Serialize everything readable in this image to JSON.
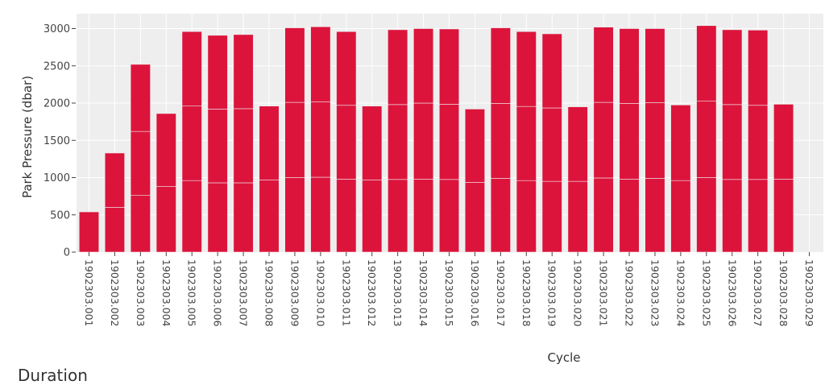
{
  "chart_data": {
    "type": "bar",
    "xlabel": "Cycle",
    "ylabel": "Park Pressure (dbar)",
    "ylim": [
      0,
      3200
    ],
    "yticks": [
      0,
      500,
      1000,
      1500,
      2000,
      2500,
      3000
    ],
    "grid": true,
    "bar_color": "#dc143c",
    "plot_bg": "#eeeeee",
    "categories": [
      "1902303.001",
      "1902303.002",
      "1902303.003",
      "1902303.004",
      "1902303.005",
      "1902303.006",
      "1902303.007",
      "1902303.008",
      "1902303.009",
      "1902303.010",
      "1902303.011",
      "1902303.012",
      "1902303.013",
      "1902303.014",
      "1902303.015",
      "1902303.016",
      "1902303.017",
      "1902303.018",
      "1902303.019",
      "1902303.020",
      "1902303.021",
      "1902303.022",
      "1902303.023",
      "1902303.024",
      "1902303.025",
      "1902303.026",
      "1902303.027",
      "1902303.028",
      "1902303.029"
    ],
    "segments": [
      [
        540
      ],
      [
        600,
        730
      ],
      [
        760,
        860,
        900
      ],
      [
        880,
        980
      ],
      [
        960,
        1000,
        1000
      ],
      [
        930,
        990,
        990
      ],
      [
        930,
        995,
        995
      ],
      [
        970,
        990
      ],
      [
        1000,
        1010,
        1000
      ],
      [
        1005,
        1010,
        1010
      ],
      [
        980,
        990,
        990
      ],
      [
        970,
        990
      ],
      [
        975,
        1005,
        1005
      ],
      [
        980,
        1020,
        1000
      ],
      [
        975,
        1010,
        1010
      ],
      [
        935,
        985
      ],
      [
        990,
        1005,
        1015
      ],
      [
        960,
        995,
        1005
      ],
      [
        950,
        985,
        995
      ],
      [
        950,
        1000
      ],
      [
        995,
        1015,
        1010
      ],
      [
        980,
        1015,
        1005
      ],
      [
        990,
        1015,
        995
      ],
      [
        960,
        1015
      ],
      [
        1000,
        1025,
        1015
      ],
      [
        975,
        1005,
        1005
      ],
      [
        975,
        995,
        1010
      ],
      [
        980,
        1005
      ],
      []
    ],
    "values": [
      540,
      1330,
      2520,
      1860,
      2960,
      2910,
      2920,
      1960,
      3010,
      3025,
      2960,
      1960,
      2985,
      3000,
      2995,
      1920,
      3010,
      2960,
      2930,
      1950,
      3020,
      3000,
      3000,
      1975,
      3040,
      2985,
      2980,
      1985,
      0
    ]
  },
  "section_heading": "Duration"
}
